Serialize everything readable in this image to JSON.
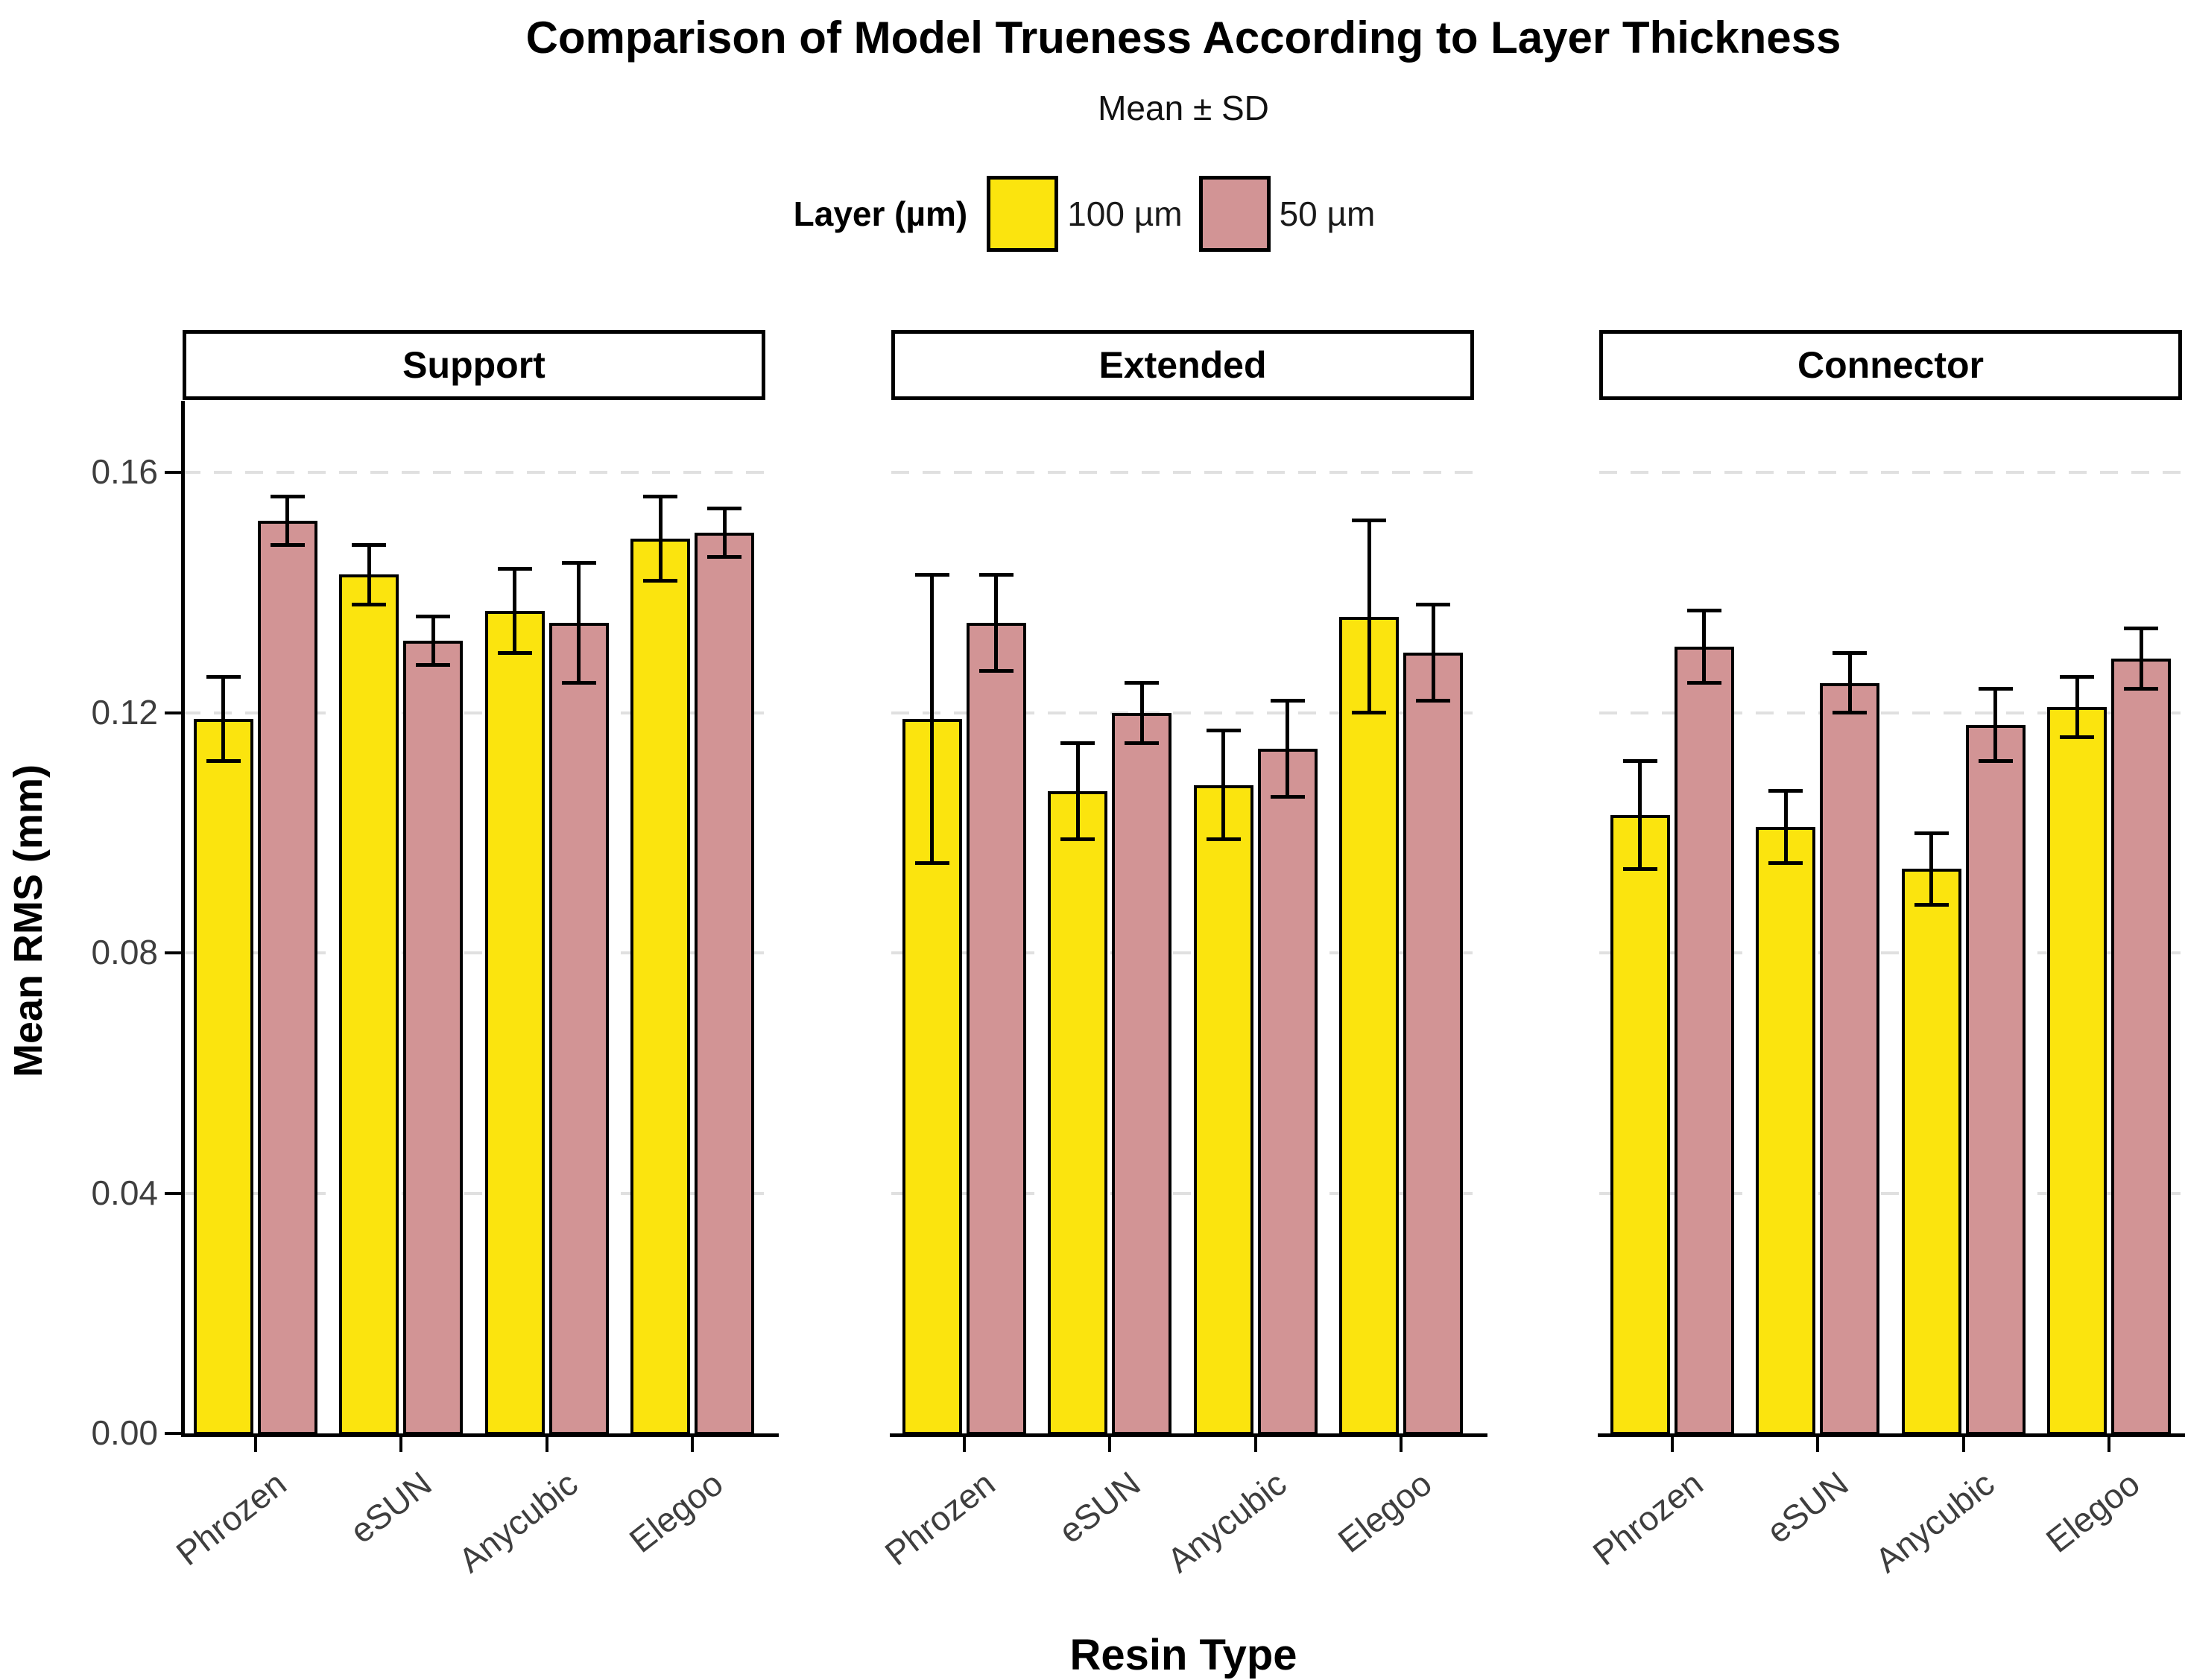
{
  "page": {
    "background": "#ffffff"
  },
  "chart_data": {
    "type": "bar",
    "title": "Comparison of Model Trueness According to Layer Thickness",
    "subtitle": "Mean ± SD",
    "xlabel": "Resin Type",
    "ylabel": "Mean RMS (mm)",
    "legend": {
      "title": "Layer (µm)",
      "position": "top",
      "entries": [
        {
          "label": "100 µm",
          "color": "#FBE40E"
        },
        {
          "label": "50 µm",
          "color": "#D29495"
        }
      ]
    },
    "categories": [
      "Phrozen",
      "eSUN",
      "Anycubic",
      "Elegoo"
    ],
    "ytick_values": [
      0.0,
      0.04,
      0.08,
      0.12,
      0.16
    ],
    "ytick_labels": [
      "0.00",
      "0.04",
      "0.08",
      "0.12",
      "0.16"
    ],
    "ylim": [
      0,
      0.1726
    ],
    "grid": "horizontal dashed gridlines at y ticks",
    "error_bars": "mean ± SD, black whiskers with caps",
    "facets": [
      {
        "label": "Support",
        "series": [
          {
            "name": "100 µm",
            "means": [
              0.119,
              0.143,
              0.137,
              0.149
            ],
            "sds": [
              0.007,
              0.005,
              0.007,
              0.007
            ]
          },
          {
            "name": "50 µm",
            "means": [
              0.152,
              0.132,
              0.135,
              0.15
            ],
            "sds": [
              0.004,
              0.004,
              0.01,
              0.004
            ]
          }
        ]
      },
      {
        "label": "Extended",
        "series": [
          {
            "name": "100 µm",
            "means": [
              0.119,
              0.107,
              0.108,
              0.136
            ],
            "sds": [
              0.024,
              0.008,
              0.009,
              0.016
            ]
          },
          {
            "name": "50 µm",
            "means": [
              0.135,
              0.12,
              0.114,
              0.13
            ],
            "sds": [
              0.008,
              0.005,
              0.008,
              0.008
            ]
          }
        ]
      },
      {
        "label": "Connector",
        "series": [
          {
            "name": "100 µm",
            "means": [
              0.103,
              0.101,
              0.094,
              0.121
            ],
            "sds": [
              0.009,
              0.006,
              0.006,
              0.005
            ]
          },
          {
            "name": "50 µm",
            "means": [
              0.131,
              0.125,
              0.118,
              0.129
            ],
            "sds": [
              0.006,
              0.005,
              0.006,
              0.005
            ]
          }
        ]
      }
    ],
    "colors": {
      "bar_border": "#000000",
      "errorbar": "#000000",
      "gridline": "#e0e0e0",
      "axis": "#000000",
      "tick_label": "#3e3e3e",
      "facet_strip_bg": "#ffffff",
      "facet_strip_border": "#000000"
    }
  }
}
